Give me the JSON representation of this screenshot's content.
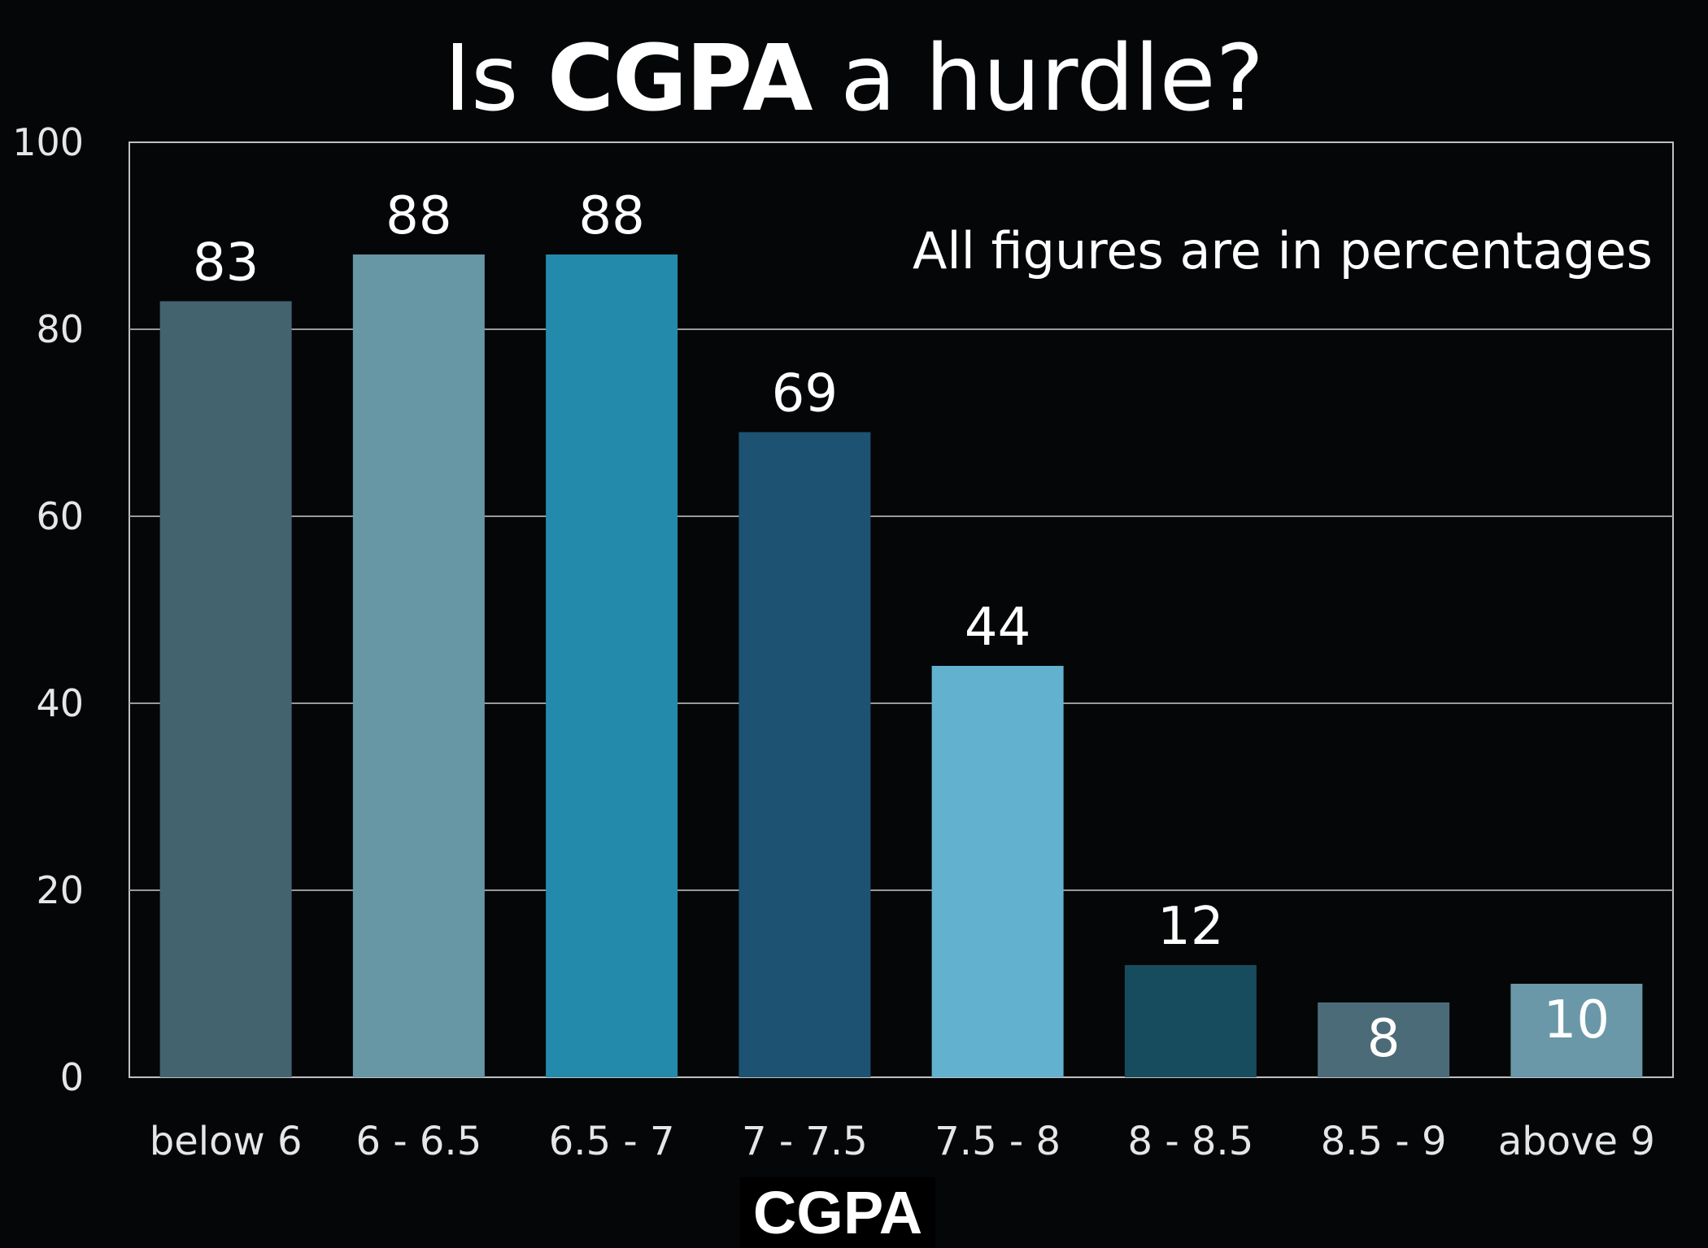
{
  "title": {
    "prefix": "Is",
    "emphasis": "CGPA",
    "suffix": "a hurdle?"
  },
  "note": "All figures are in percentages",
  "chart_data": {
    "type": "bar",
    "title": "Is CGPA a hurdle?",
    "xlabel": "CGPA",
    "ylabel": "",
    "ylim": [
      0,
      100
    ],
    "yticks": [
      0,
      20,
      40,
      60,
      80,
      100
    ],
    "grid": true,
    "categories": [
      "below 6",
      "6 - 6.5",
      "6.5 - 7",
      "7 - 7.5",
      "7.5 - 8",
      "8 - 8.5",
      "8.5 - 9",
      "above 9"
    ],
    "values": [
      83,
      88,
      88,
      69,
      44,
      12,
      8,
      10
    ],
    "colors": [
      "#43646f",
      "#6796a5",
      "#238aab",
      "#1d5273",
      "#62b1cf",
      "#164c5d",
      "#4c6b79",
      "#6a98a8"
    ],
    "data_labels_inside": [
      false,
      false,
      false,
      false,
      false,
      false,
      true,
      true
    ]
  }
}
